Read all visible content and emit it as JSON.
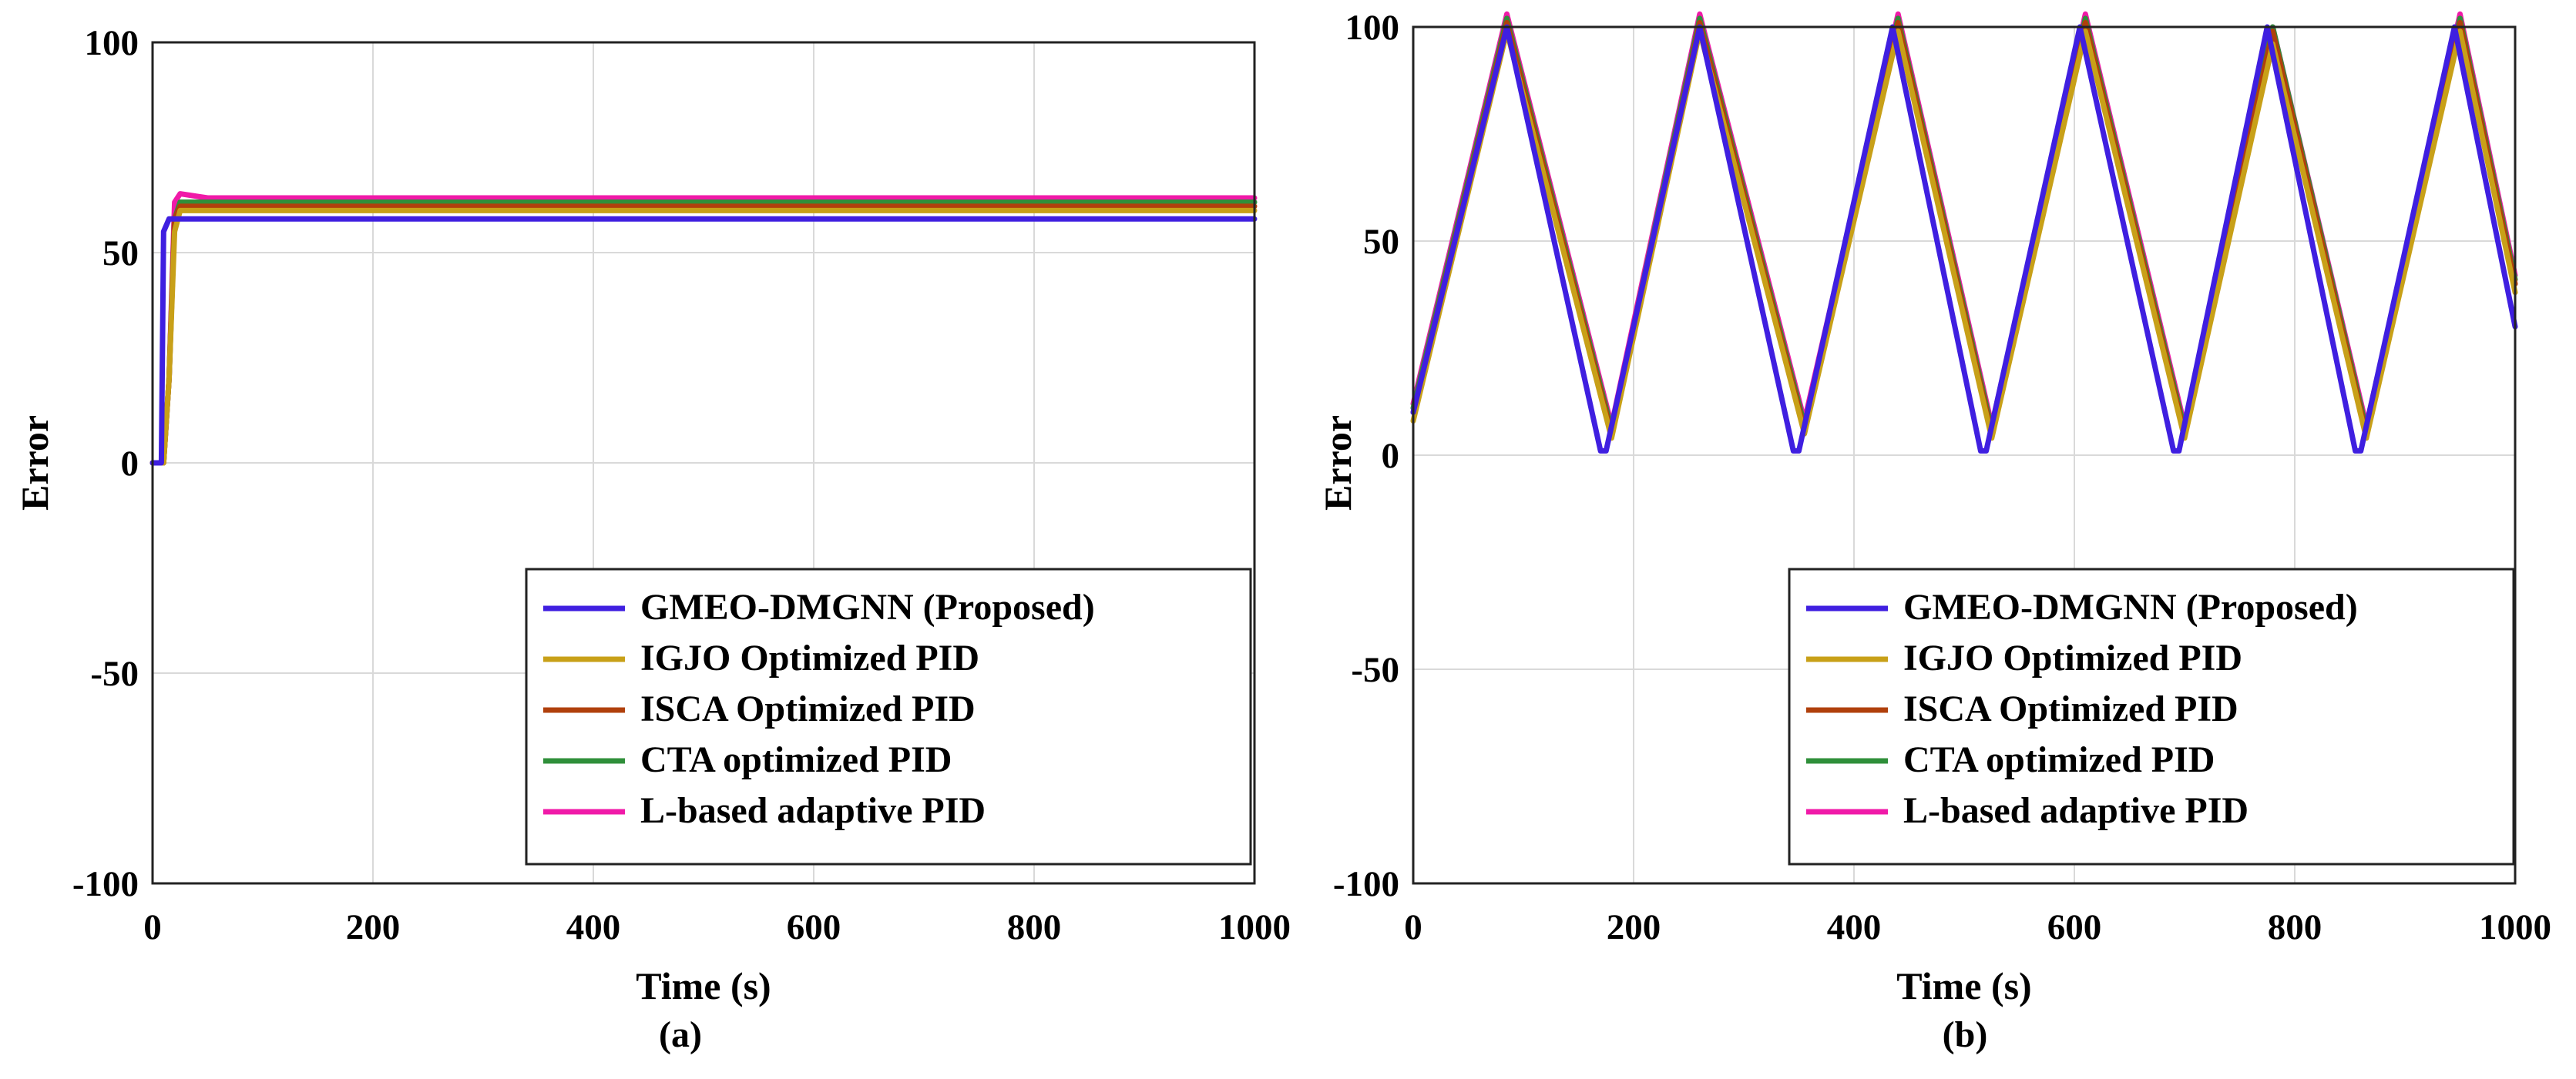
{
  "chart_data": [
    {
      "type": "line",
      "panel_label": "(a)",
      "xlabel": "Time (s)",
      "ylabel": "Error",
      "xlim": [
        0,
        1000
      ],
      "ylim": [
        -100,
        100
      ],
      "xticks": [
        0,
        200,
        400,
        600,
        800,
        1000
      ],
      "yticks": [
        -100,
        -50,
        0,
        50,
        100
      ],
      "grid": true,
      "legend_position": "bottom-right",
      "series": [
        {
          "name": "GMEO-DMGNN (Proposed)",
          "color": "#3f1fe0",
          "x": [
            0,
            8,
            10,
            15,
            20,
            50,
            100,
            150,
            200,
            250,
            300,
            350,
            400,
            450,
            500,
            550,
            600,
            650,
            700,
            750,
            800,
            850,
            900,
            950,
            1000
          ],
          "y": [
            0,
            0,
            55,
            58,
            58,
            58,
            58,
            58,
            58,
            58,
            58,
            58,
            58,
            58,
            58,
            58,
            58,
            58,
            58,
            58,
            58,
            58,
            58,
            58,
            58
          ]
        },
        {
          "name": "IGJO Optimized PID",
          "color": "#c8a018",
          "x": [
            0,
            10,
            15,
            20,
            25,
            50,
            100,
            150,
            200,
            250,
            300,
            350,
            400,
            450,
            500,
            550,
            600,
            650,
            700,
            750,
            800,
            850,
            900,
            950,
            1000
          ],
          "y": [
            0,
            0,
            20,
            55,
            60,
            60,
            60,
            60,
            60,
            60,
            60,
            60,
            60,
            60,
            60,
            60,
            60,
            60,
            60,
            60,
            60,
            60,
            60,
            60,
            60
          ]
        },
        {
          "name": "ISCA Optimized PID",
          "color": "#b0400c",
          "x": [
            0,
            10,
            15,
            20,
            25,
            50,
            100,
            150,
            200,
            250,
            300,
            350,
            400,
            450,
            500,
            550,
            600,
            650,
            700,
            750,
            800,
            850,
            900,
            950,
            1000
          ],
          "y": [
            0,
            0,
            20,
            58,
            61,
            61,
            61,
            61,
            61,
            61,
            61,
            61,
            61,
            61,
            61,
            61,
            61,
            61,
            61,
            61,
            61,
            61,
            61,
            61,
            61
          ]
        },
        {
          "name": "CTA optimized PID",
          "color": "#2f8f3a",
          "x": [
            0,
            10,
            15,
            20,
            25,
            50,
            100,
            150,
            200,
            250,
            300,
            350,
            400,
            450,
            500,
            550,
            600,
            650,
            700,
            750,
            800,
            850,
            900,
            950,
            1000
          ],
          "y": [
            0,
            0,
            20,
            58,
            62,
            62,
            62,
            62,
            62,
            62,
            62,
            62,
            62,
            62,
            62,
            62,
            62,
            62,
            62,
            62,
            62,
            62,
            62,
            62,
            62
          ]
        },
        {
          "name": "L-based adaptive PID",
          "color": "#f01aa8",
          "x": [
            0,
            10,
            15,
            20,
            25,
            50,
            100,
            150,
            200,
            250,
            300,
            350,
            400,
            450,
            500,
            550,
            600,
            650,
            700,
            750,
            800,
            850,
            900,
            950,
            1000
          ],
          "y": [
            0,
            0,
            20,
            62,
            64,
            63,
            63,
            63,
            63,
            63,
            63,
            63,
            63,
            63,
            63,
            63,
            63,
            63,
            63,
            63,
            63,
            63,
            63,
            63,
            63
          ]
        }
      ]
    },
    {
      "type": "line",
      "panel_label": "(b)",
      "xlabel": "Time (s)",
      "ylabel": "Error",
      "xlim": [
        0,
        1000
      ],
      "ylim": [
        -100,
        100
      ],
      "xticks": [
        0,
        200,
        400,
        600,
        800,
        1000
      ],
      "yticks": [
        -100,
        -50,
        0,
        50,
        100
      ],
      "grid": true,
      "legend_position": "bottom-right",
      "series": [
        {
          "name": "GMEO-DMGNN (Proposed)",
          "color": "#3f1fe0",
          "x": [
            0,
            85,
            170,
            175,
            260,
            345,
            350,
            435,
            515,
            520,
            605,
            690,
            695,
            775,
            855,
            860,
            945,
            1000
          ],
          "y": [
            10,
            100,
            1,
            1,
            100,
            1,
            1,
            100,
            1,
            1,
            100,
            1,
            1,
            100,
            1,
            1,
            100,
            30
          ]
        },
        {
          "name": "IGJO Optimized PID",
          "color": "#c8a018",
          "x": [
            0,
            85,
            180,
            260,
            355,
            440,
            525,
            610,
            700,
            780,
            865,
            950,
            1000
          ],
          "y": [
            8,
            99,
            4,
            99,
            5,
            99,
            4,
            99,
            4,
            96,
            4,
            99,
            38
          ]
        },
        {
          "name": "ISCA Optimized PID",
          "color": "#b0400c",
          "x": [
            0,
            85,
            180,
            260,
            355,
            440,
            525,
            610,
            700,
            780,
            865,
            950,
            1000
          ],
          "y": [
            10,
            101,
            5,
            101,
            6,
            101,
            5,
            101,
            5,
            99,
            5,
            101,
            40
          ]
        },
        {
          "name": "CTA optimized PID",
          "color": "#2f8f3a",
          "x": [
            0,
            85,
            180,
            260,
            355,
            440,
            525,
            610,
            700,
            780,
            865,
            950,
            1000
          ],
          "y": [
            11,
            102,
            6,
            102,
            7,
            102,
            6,
            102,
            6,
            100,
            6,
            102,
            41
          ]
        },
        {
          "name": "L-based adaptive PID",
          "color": "#f01aa8",
          "x": [
            0,
            85,
            180,
            260,
            355,
            440,
            525,
            610,
            700,
            780,
            865,
            950,
            1000
          ],
          "y": [
            12,
            103,
            7,
            103,
            8,
            103,
            7,
            103,
            7,
            100,
            7,
            103,
            42
          ]
        }
      ]
    }
  ]
}
